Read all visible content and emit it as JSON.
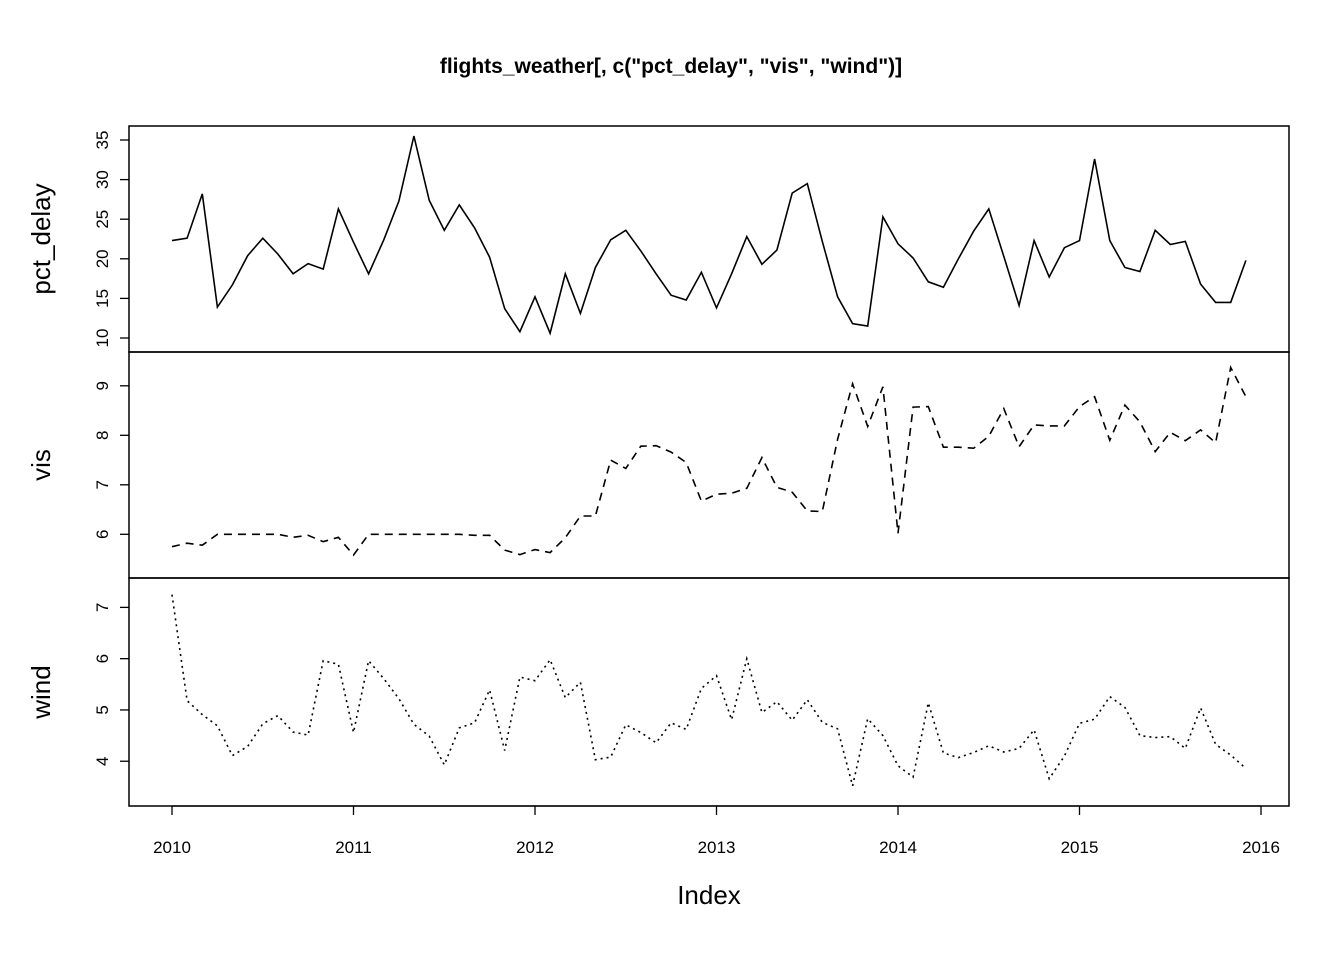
{
  "chart_data": {
    "type": "line",
    "title": "flights_weather[, c(\"pct_delay\", \"vis\", \"wind\")]",
    "xlabel": "Index",
    "xlim": [
      2010,
      2016
    ],
    "x_ticks": [
      "2010",
      "2011",
      "2012",
      "2013",
      "2014",
      "2015",
      "2016"
    ],
    "x": [
      2010.0,
      2010.083,
      2010.167,
      2010.25,
      2010.333,
      2010.417,
      2010.5,
      2010.583,
      2010.667,
      2010.75,
      2010.833,
      2010.917,
      2011.0,
      2011.083,
      2011.167,
      2011.25,
      2011.333,
      2011.417,
      2011.5,
      2011.583,
      2011.667,
      2011.75,
      2011.833,
      2011.917,
      2012.0,
      2012.083,
      2012.167,
      2012.25,
      2012.333,
      2012.417,
      2012.5,
      2012.583,
      2012.667,
      2012.75,
      2012.833,
      2012.917,
      2013.0,
      2013.083,
      2013.167,
      2013.25,
      2013.333,
      2013.417,
      2013.5,
      2013.583,
      2013.667,
      2013.75,
      2013.833,
      2013.917,
      2014.0,
      2014.083,
      2014.167,
      2014.25,
      2014.333,
      2014.417,
      2014.5,
      2014.583,
      2014.667,
      2014.75,
      2014.833,
      2014.917,
      2015.0,
      2015.083,
      2015.167,
      2015.25,
      2015.333,
      2015.417,
      2015.5,
      2015.583,
      2015.667,
      2015.75,
      2015.833,
      2015.917
    ],
    "series": [
      {
        "name": "pct_delay",
        "dash": "solid",
        "ylim": [
          10,
          35
        ],
        "ticks": [
          "10",
          "15",
          "20",
          "25",
          "30",
          "35"
        ],
        "values": [
          22.3,
          22.6,
          28.2,
          13.9,
          16.7,
          20.4,
          22.6,
          20.6,
          18.1,
          19.4,
          18.7,
          26.3,
          22.1,
          18.1,
          22.4,
          27.3,
          35.5,
          27.4,
          23.6,
          26.8,
          23.9,
          20.2,
          13.7,
          10.8,
          15.2,
          10.6,
          18.1,
          13.1,
          18.9,
          22.4,
          23.6,
          21.0,
          18.1,
          15.4,
          14.8,
          18.3,
          13.8,
          18.1,
          22.8,
          19.3,
          21.1,
          28.3,
          29.5,
          22.2,
          15.2,
          11.8,
          11.5,
          25.3,
          21.9,
          20.1,
          17.1,
          16.4,
          20.0,
          23.5,
          26.3,
          20.3,
          14.1,
          22.3,
          17.7,
          21.4,
          22.3,
          32.6,
          22.3,
          18.9,
          18.4,
          23.6,
          21.8,
          22.2,
          16.8,
          14.5,
          14.5,
          19.8
        ]
      },
      {
        "name": "vis",
        "dash": "dashed",
        "ylim": [
          5.4,
          9.4
        ],
        "ticks": [
          "6",
          "7",
          "8",
          "9"
        ],
        "values": [
          5.75,
          5.82,
          5.78,
          6.0,
          6.0,
          6.0,
          6.0,
          6.0,
          5.94,
          5.98,
          5.85,
          5.94,
          5.58,
          6.0,
          6.0,
          6.0,
          6.0,
          6.0,
          6.0,
          6.0,
          5.98,
          5.98,
          5.68,
          5.59,
          5.69,
          5.63,
          5.93,
          6.37,
          6.37,
          7.5,
          7.33,
          7.78,
          7.79,
          7.66,
          7.45,
          6.67,
          6.81,
          6.83,
          6.93,
          7.55,
          6.95,
          6.85,
          6.47,
          6.46,
          7.92,
          9.04,
          8.18,
          8.98,
          6.02,
          8.57,
          8.58,
          7.76,
          7.76,
          7.74,
          7.98,
          8.54,
          7.77,
          8.21,
          8.19,
          8.19,
          8.58,
          8.78,
          7.9,
          8.61,
          8.27,
          7.67,
          8.06,
          7.89,
          8.11,
          7.85,
          9.37,
          8.78
        ]
      },
      {
        "name": "wind",
        "dash": "dotted",
        "ylim": [
          3.4,
          7.3
        ],
        "ticks": [
          "4",
          "5",
          "6",
          "7"
        ],
        "values": [
          7.25,
          5.18,
          4.91,
          4.69,
          4.11,
          4.29,
          4.73,
          4.89,
          4.57,
          4.51,
          5.96,
          5.89,
          4.56,
          5.96,
          5.61,
          5.22,
          4.72,
          4.49,
          3.93,
          4.65,
          4.75,
          5.39,
          4.21,
          5.64,
          5.57,
          5.98,
          5.24,
          5.54,
          4.03,
          4.08,
          4.71,
          4.56,
          4.36,
          4.75,
          4.62,
          5.42,
          5.67,
          4.81,
          6.0,
          4.95,
          5.16,
          4.8,
          5.2,
          4.76,
          4.63,
          3.52,
          4.83,
          4.5,
          3.91,
          3.69,
          5.14,
          4.16,
          4.07,
          4.17,
          4.3,
          4.18,
          4.25,
          4.61,
          3.66,
          4.1,
          4.74,
          4.82,
          5.26,
          5.05,
          4.5,
          4.46,
          4.48,
          4.25,
          5.04,
          4.33,
          4.12,
          3.86
        ]
      }
    ]
  }
}
